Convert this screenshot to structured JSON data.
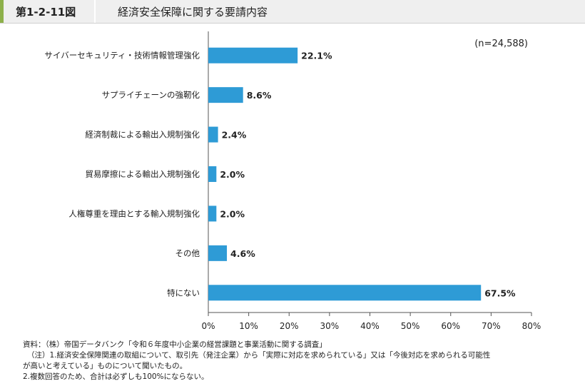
{
  "header": {
    "figure_number": "第1-2-11図",
    "title": "経済安全保障に関する要請内容"
  },
  "colors": {
    "bar": "#2e9bd6",
    "accent": "#8db04a",
    "axis": "#555555"
  },
  "chart_data": {
    "type": "bar",
    "orientation": "horizontal",
    "categories": [
      "サイバーセキュリティ・技術情報管理強化",
      "サプライチェーンの強靭化",
      "経済制裁による輸出入規制強化",
      "貿易摩擦による輸出入規制強化",
      "人権尊重を理由とする輸入規制強化",
      "その他",
      "特にない"
    ],
    "values": [
      22.1,
      8.6,
      2.4,
      2.0,
      2.0,
      4.6,
      67.5
    ],
    "value_labels": [
      "22.1%",
      "8.6%",
      "2.4%",
      "2.0%",
      "2.0%",
      "4.6%",
      "67.5%"
    ],
    "xlim": [
      0,
      80
    ],
    "ticks": [
      0,
      10,
      20,
      30,
      40,
      50,
      60,
      70,
      80
    ],
    "tick_labels": [
      "0%",
      "10%",
      "20%",
      "30%",
      "40%",
      "50%",
      "60%",
      "70%",
      "80%"
    ],
    "annotation": "(n=24,588)",
    "grid": false
  },
  "notes": {
    "source": "資料：（株）帝国データバンク「令和６年度中小企業の経営課題と事業活動に関する調査」",
    "note1_line1": "（注）1.経済安全保障関連の取組について、取引先（発注企業）から「実際に対応を求められている」又は「今後対応を求められる可能性",
    "note1_line2": "が高いと考えている」ものについて聞いたもの。",
    "note2": "2.複数回答のため、合計は必ずしも100%にならない。"
  }
}
